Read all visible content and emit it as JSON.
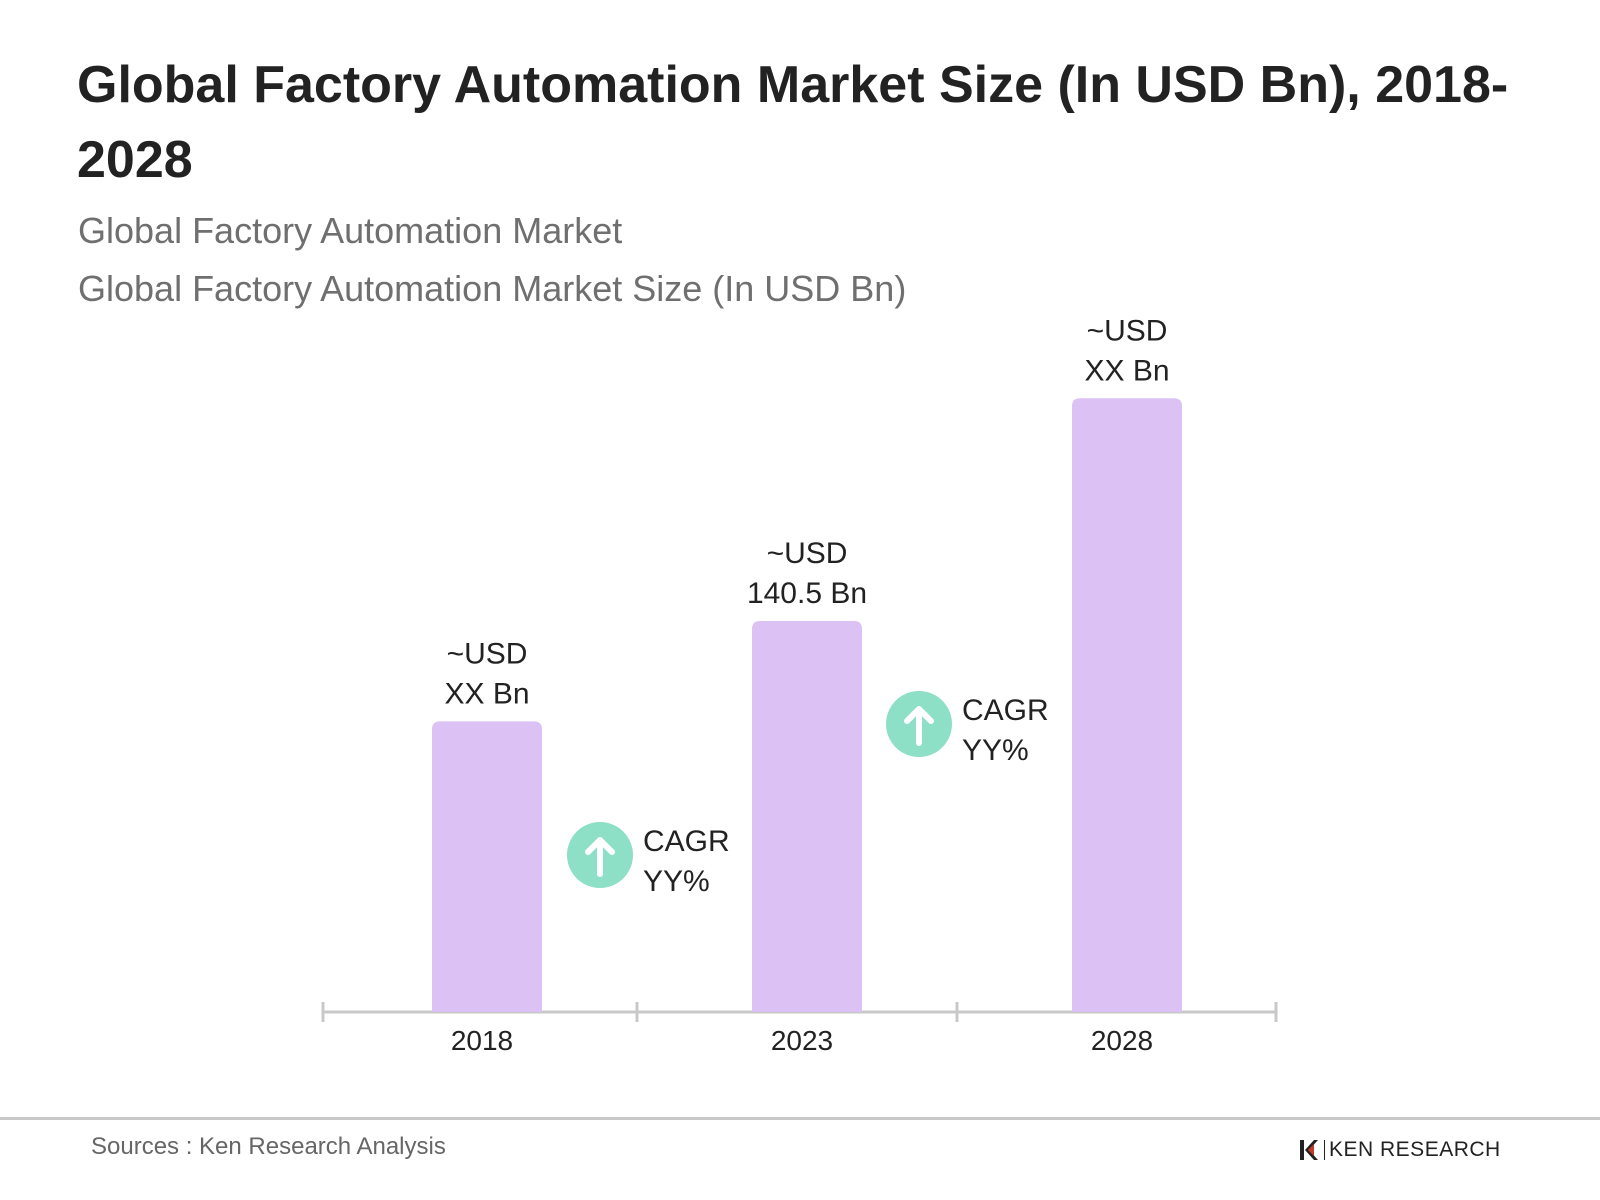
{
  "title": "Global Factory Automation Market Size (In USD Bn), 2018-2028",
  "subtitle_1": "Global Factory Automation Market",
  "subtitle_2": "Global Factory Automation Market Size (In USD Bn)",
  "chart_data": {
    "type": "bar",
    "categories": [
      "2018",
      "2023",
      "2028"
    ],
    "values": [
      104.4,
      140.5,
      220.5
    ],
    "data_labels": [
      [
        "~USD",
        "XX Bn"
      ],
      [
        "~USD",
        "140.5 Bn"
      ],
      [
        "~USD",
        "XX Bn"
      ]
    ],
    "annotations": [
      {
        "between": [
          "2018",
          "2023"
        ],
        "lines": [
          "CAGR",
          "YY%"
        ],
        "icon": "arrow-up-circle-icon"
      },
      {
        "between": [
          "2023",
          "2028"
        ],
        "lines": [
          "CAGR",
          "YY%"
        ],
        "icon": "arrow-up-circle-icon"
      }
    ],
    "ylim": [
      0,
      240
    ],
    "grid": false,
    "bar_color": "#dcc1f5",
    "icon_color": "#8ddfc6",
    "axis_color": "#c8c8c8"
  },
  "footer": {
    "sources": "Sources : Ken Research Analysis",
    "logo_text": "KEN RESEARCH"
  }
}
